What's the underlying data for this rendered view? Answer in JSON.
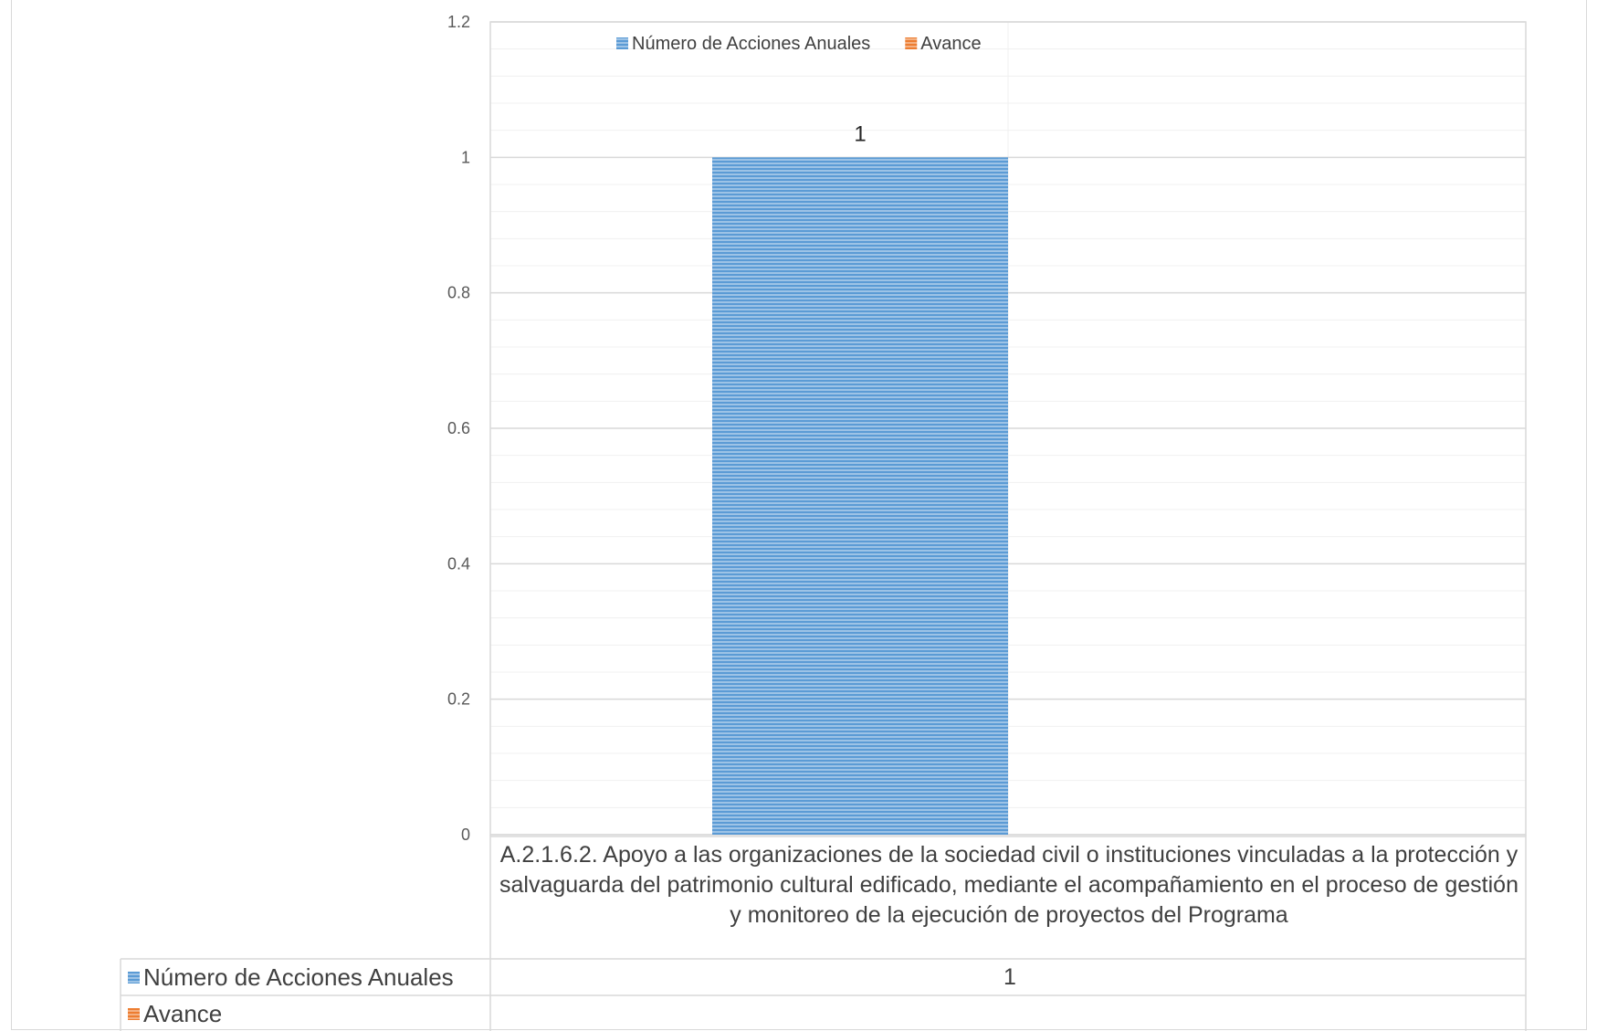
{
  "chart_data": {
    "type": "bar",
    "categories": [
      "A.2.1.6.2. Apoyo a las organizaciones de la sociedad civil o instituciones vinculadas a la protección y salvaguarda del patrimonio cultural edificado, mediante el acompañamiento en el proceso de gestión y monitoreo de la ejecución de proyectos del Programa"
    ],
    "series": [
      {
        "name": "Número de Acciones Anuales",
        "values": [
          1
        ],
        "color": "#5b9bd5"
      },
      {
        "name": "Avance",
        "values": [
          null
        ],
        "color": "#ed7d31"
      }
    ],
    "ylim": [
      0,
      1.2
    ],
    "yticks": [
      "0",
      "0.2",
      "0.4",
      "0.6",
      "0.8",
      "1",
      "1.2"
    ],
    "data_labels": [
      "1"
    ],
    "legend_position": "top",
    "grid": true,
    "data_table": {
      "rows": [
        {
          "label": "Número de Acciones Anuales",
          "values": [
            "1"
          ]
        },
        {
          "label": "Avance",
          "values": [
            ""
          ]
        }
      ]
    }
  }
}
